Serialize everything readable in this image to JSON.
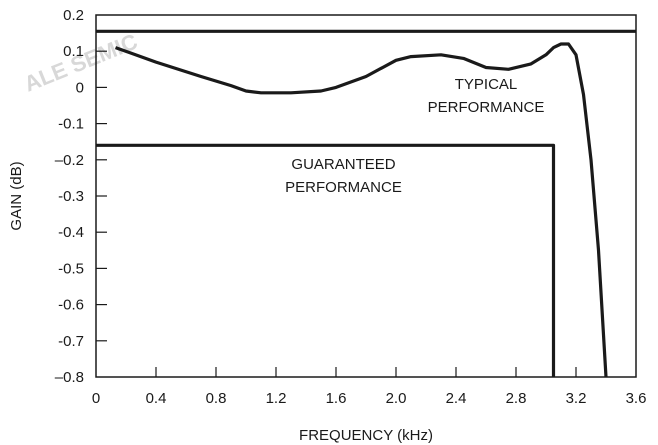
{
  "chart_data": {
    "type": "line",
    "xlabel": "FREQUENCY (kHz)",
    "ylabel": "GAIN (dB)",
    "xlim": [
      0,
      3.6
    ],
    "ylim": [
      -0.8,
      0.2
    ],
    "xticks": [
      0,
      0.4,
      0.8,
      1.2,
      1.6,
      2.0,
      2.4,
      2.8,
      3.2,
      3.6
    ],
    "xtick_labels": [
      "0",
      "0.4",
      "0.8",
      "1.2",
      "1.6",
      "2.0",
      "2.4",
      "2.8",
      "3.2",
      "3.6"
    ],
    "yticks": [
      0.2,
      0.1,
      0,
      -0.1,
      -0.2,
      -0.3,
      -0.4,
      -0.5,
      -0.6,
      -0.7,
      -0.8
    ],
    "ytick_labels": [
      "0.2",
      "0.1",
      "0",
      "-0.1",
      "–0.2",
      "-0.3",
      "-0.4",
      "-0.5",
      "-0.6",
      "-0.7",
      "–0.8"
    ],
    "grid": false,
    "series": [
      {
        "role": "typical",
        "x": [
          0.13,
          0.4,
          0.7,
          0.9,
          1.0,
          1.1,
          1.3,
          1.5,
          1.6,
          1.8,
          2.0,
          2.1,
          2.3,
          2.45,
          2.6,
          2.75,
          2.9,
          3.0,
          3.05,
          3.1,
          3.15,
          3.2,
          3.25,
          3.3,
          3.35,
          3.4
        ],
        "y": [
          0.11,
          0.07,
          0.03,
          0.005,
          -0.01,
          -0.015,
          -0.015,
          -0.01,
          0.0,
          0.03,
          0.075,
          0.085,
          0.09,
          0.08,
          0.055,
          0.05,
          0.065,
          0.09,
          0.11,
          0.12,
          0.12,
          0.09,
          -0.02,
          -0.2,
          -0.45,
          -0.8
        ]
      },
      {
        "role": "guaranteed",
        "x": [
          0,
          3.05,
          3.05
        ],
        "y": [
          -0.16,
          -0.16,
          -0.8
        ]
      },
      {
        "role": "upper-limit",
        "x": [
          0,
          3.6
        ],
        "y": [
          0.155,
          0.155
        ]
      }
    ],
    "annotations": [
      {
        "lines": [
          "TYPICAL",
          "PERFORMANCE"
        ],
        "x": 2.6,
        "y": -0.005
      },
      {
        "lines": [
          "GUARANTEED",
          "PERFORMANCE"
        ],
        "x": 1.65,
        "y": -0.225
      }
    ],
    "watermark": "ALE SEMIC"
  }
}
